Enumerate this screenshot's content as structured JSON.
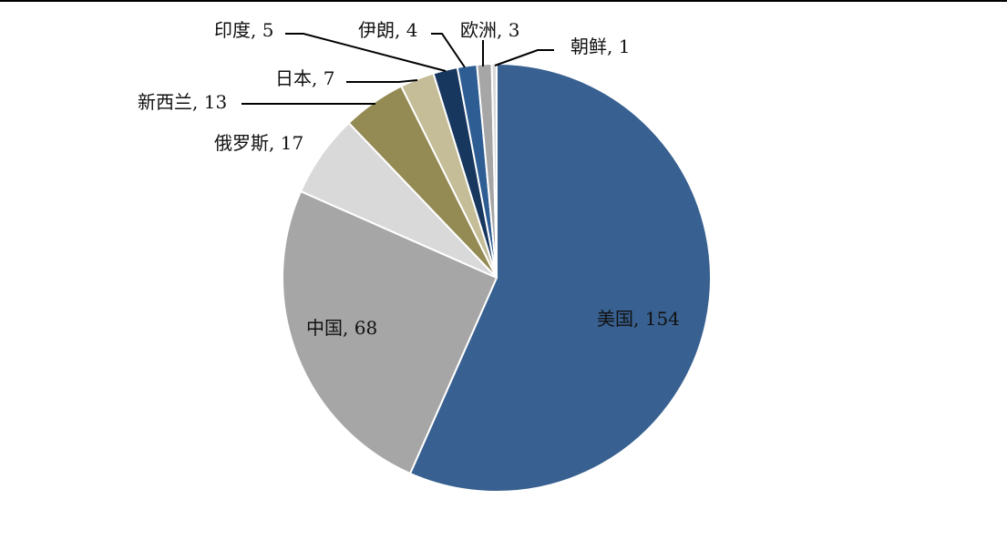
{
  "chart_data": {
    "type": "pie",
    "slices": [
      {
        "label": "美国",
        "value": 154,
        "color": "#386090"
      },
      {
        "label": "中国",
        "value": 68,
        "color": "#a6a6a6"
      },
      {
        "label": "俄罗斯",
        "value": 17,
        "color": "#d9d9d9"
      },
      {
        "label": "新西兰",
        "value": 13,
        "color": "#948a54"
      },
      {
        "label": "日本",
        "value": 7,
        "color": "#c4bd97"
      },
      {
        "label": "印度",
        "value": 5,
        "color": "#17375e"
      },
      {
        "label": "伊朗",
        "value": 4,
        "color": "#2e5d93"
      },
      {
        "label": "欧洲",
        "value": 3,
        "color": "#a6a6a6"
      },
      {
        "label": "朝鲜",
        "value": 1,
        "color": "#d9d9d9"
      }
    ],
    "data_labels": [
      "美国, 154",
      "中国, 68",
      "俄罗斯, 17",
      "新西兰, 13",
      "日本, 7",
      "印度, 5",
      "伊朗, 4",
      "欧洲, 3",
      "朝鲜, 1"
    ]
  }
}
